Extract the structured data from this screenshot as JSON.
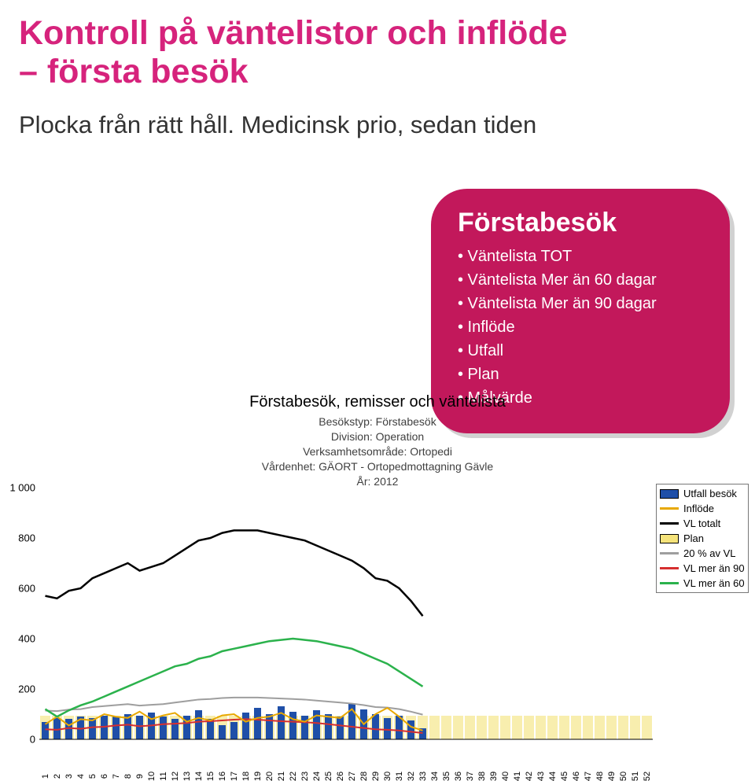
{
  "heading": {
    "line1": "Kontroll på väntelistor och inflöde",
    "line2": "– första besök",
    "color": "#d6237c",
    "fontsize": 43
  },
  "subtitle": {
    "text": "Plocka från rätt håll. Medicinsk prio, sedan tiden",
    "color": "#333333",
    "fontsize": 31
  },
  "callout": {
    "bg": "#c2185b",
    "text_color": "#ffffff",
    "title": "Förstabesök",
    "title_fontsize": 34,
    "item_fontsize": 20,
    "items": [
      "Väntelista TOT",
      "Väntelista Mer än 60 dagar",
      "Väntelista Mer än 90 dagar",
      "Inflöde",
      "Utfall",
      "Plan",
      "Målvärde"
    ]
  },
  "meta": {
    "title": "Förstabesök, remisser och väntelista",
    "lines": [
      "Besökstyp: Förstabesök",
      "Division: Operation",
      "Verksamhetsområde: Ortopedi",
      "Vårdenhet: GÄORT - Ortopedmottagning Gävle",
      "År: 2012"
    ],
    "color": "#404040"
  },
  "chart": {
    "ylim": [
      0,
      1000
    ],
    "yticks": [
      0,
      200,
      400,
      600,
      800,
      1000
    ],
    "xticks": [
      1,
      2,
      3,
      4,
      5,
      6,
      7,
      8,
      9,
      10,
      11,
      12,
      13,
      14,
      15,
      16,
      17,
      18,
      19,
      20,
      21,
      22,
      23,
      24,
      25,
      26,
      27,
      28,
      29,
      30,
      31,
      32,
      33,
      34,
      35,
      36,
      37,
      38,
      39,
      40,
      41,
      42,
      43,
      44,
      45,
      46,
      47,
      48,
      49,
      50,
      51,
      52
    ],
    "series": {
      "utfall_besok": {
        "color": "#1f4fa8",
        "values": [
          70,
          85,
          80,
          90,
          85,
          95,
          90,
          100,
          95,
          105,
          90,
          80,
          95,
          115,
          80,
          55,
          70,
          105,
          125,
          100,
          130,
          110,
          95,
          115,
          100,
          90,
          140,
          120,
          100,
          85,
          95,
          75,
          45
        ]
      },
      "inflode": {
        "color": "#e8a800",
        "values": [
          60,
          90,
          55,
          80,
          75,
          100,
          90,
          85,
          110,
          80,
          95,
          105,
          70,
          85,
          75,
          95,
          100,
          70,
          85,
          90,
          105,
          80,
          70,
          95,
          90,
          85,
          120,
          60,
          100,
          125,
          90,
          50,
          35
        ]
      },
      "vl_totalt": {
        "color": "#000000",
        "values": [
          570,
          560,
          590,
          600,
          640,
          660,
          680,
          700,
          670,
          685,
          700,
          730,
          760,
          790,
          800,
          820,
          830,
          830,
          830,
          820,
          810,
          800,
          790,
          770,
          750,
          730,
          710,
          680,
          640,
          630,
          600,
          550,
          490
        ]
      },
      "plan": {
        "color": "#f5e37a",
        "band_top": 95,
        "band_bottom": 0,
        "count": 52
      },
      "pct20_vl": {
        "color": "#9e9e9e",
        "values": [
          114,
          112,
          118,
          120,
          128,
          132,
          136,
          140,
          134,
          137,
          140,
          146,
          152,
          158,
          160,
          164,
          166,
          166,
          166,
          164,
          162,
          160,
          158,
          154,
          150,
          146,
          142,
          136,
          128,
          126,
          120,
          110,
          98
        ]
      },
      "vl_mer_90": {
        "color": "#d62f2f",
        "values": [
          40,
          38,
          45,
          42,
          48,
          50,
          55,
          58,
          52,
          55,
          60,
          62,
          65,
          70,
          72,
          75,
          78,
          80,
          78,
          75,
          72,
          70,
          68,
          65,
          60,
          55,
          50,
          45,
          40,
          38,
          35,
          30,
          25
        ]
      },
      "vl_mer_60": {
        "color": "#2bb24c",
        "values": [
          120,
          90,
          115,
          135,
          150,
          170,
          190,
          210,
          230,
          250,
          270,
          290,
          300,
          320,
          330,
          350,
          360,
          370,
          380,
          390,
          395,
          400,
          395,
          390,
          380,
          370,
          360,
          340,
          320,
          300,
          270,
          240,
          210
        ]
      }
    }
  },
  "legend": {
    "rows": [
      {
        "label": "Utfall besök",
        "color": "#1f4fa8",
        "type": "box"
      },
      {
        "label": "Inflöde",
        "color": "#e8a800",
        "type": "line"
      },
      {
        "label": "VL totalt",
        "color": "#000000",
        "type": "line"
      },
      {
        "label": "Plan",
        "color": "#f5e37a",
        "type": "box"
      },
      {
        "label": "20 % av VL",
        "color": "#9e9e9e",
        "type": "line"
      },
      {
        "label": "VL mer än 90",
        "color": "#d62f2f",
        "type": "line"
      },
      {
        "label": "VL mer än 60",
        "color": "#2bb24c",
        "type": "line"
      }
    ]
  }
}
